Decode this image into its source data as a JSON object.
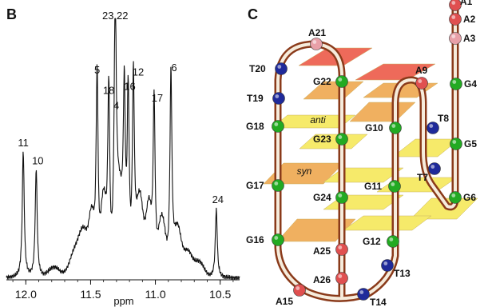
{
  "panels": {
    "b_label": "B",
    "c_label": "C"
  },
  "chart_data": {
    "type": "line",
    "title": "",
    "xlabel": "ppm",
    "ylabel": "",
    "xlim": [
      12.15,
      10.35
    ],
    "x_ticks": [
      "12.0",
      "11.5",
      "11.0",
      "10.5"
    ],
    "x_tick_values": [
      12.0,
      11.5,
      11.0,
      10.5
    ],
    "peaks": [
      {
        "label": "11",
        "ppm": 12.02,
        "height": 0.5
      },
      {
        "label": "10",
        "ppm": 11.92,
        "height": 0.43
      },
      {
        "label": "5",
        "ppm": 11.45,
        "height": 0.78
      },
      {
        "label": "18",
        "ppm": 11.36,
        "height": 0.7
      },
      {
        "label": "23,22",
        "ppm": 11.31,
        "height": 1.0
      },
      {
        "label": "4",
        "ppm": 11.24,
        "height": 0.64
      },
      {
        "label": "16",
        "ppm": 11.21,
        "height": 0.69
      },
      {
        "label": "12",
        "ppm": 11.17,
        "height": 0.74
      },
      {
        "label": "17",
        "ppm": 11.01,
        "height": 0.67
      },
      {
        "label": "6",
        "ppm": 10.88,
        "height": 0.79
      },
      {
        "label": "24",
        "ppm": 10.53,
        "height": 0.27
      }
    ]
  },
  "structure": {
    "anti_label": "anti",
    "syn_label": "syn",
    "colors": {
      "guanine": "#22aa22",
      "thymine": "#1f2a9a",
      "adenine": "#e05050",
      "adenine_pale": "#e8a0a8",
      "backbone_outer": "#8a3a1a",
      "backbone_inner": "#f6ecdc",
      "plane_yellow": "#f6ea6a",
      "plane_orange": "#f0b060",
      "plane_red": "#ee6a5a"
    },
    "nucleotides": [
      {
        "label": "A1",
        "type": "adenine"
      },
      {
        "label": "A2",
        "type": "adenine"
      },
      {
        "label": "A3",
        "type": "adenine_pale"
      },
      {
        "label": "G4",
        "type": "guanine"
      },
      {
        "label": "G5",
        "type": "guanine"
      },
      {
        "label": "G6",
        "type": "guanine"
      },
      {
        "label": "T7",
        "type": "thymine"
      },
      {
        "label": "T8",
        "type": "thymine"
      },
      {
        "label": "A9",
        "type": "adenine"
      },
      {
        "label": "G10",
        "type": "guanine"
      },
      {
        "label": "G11",
        "type": "guanine"
      },
      {
        "label": "G12",
        "type": "guanine"
      },
      {
        "label": "T13",
        "type": "thymine"
      },
      {
        "label": "T14",
        "type": "thymine"
      },
      {
        "label": "A15",
        "type": "adenine"
      },
      {
        "label": "G16",
        "type": "guanine"
      },
      {
        "label": "G17",
        "type": "guanine"
      },
      {
        "label": "G18",
        "type": "guanine"
      },
      {
        "label": "T19",
        "type": "thymine"
      },
      {
        "label": "T20",
        "type": "thymine"
      },
      {
        "label": "A21",
        "type": "adenine_pale"
      },
      {
        "label": "G22",
        "type": "guanine"
      },
      {
        "label": "G23",
        "type": "guanine"
      },
      {
        "label": "G24",
        "type": "guanine"
      },
      {
        "label": "A25",
        "type": "adenine"
      },
      {
        "label": "A26",
        "type": "adenine"
      }
    ]
  }
}
